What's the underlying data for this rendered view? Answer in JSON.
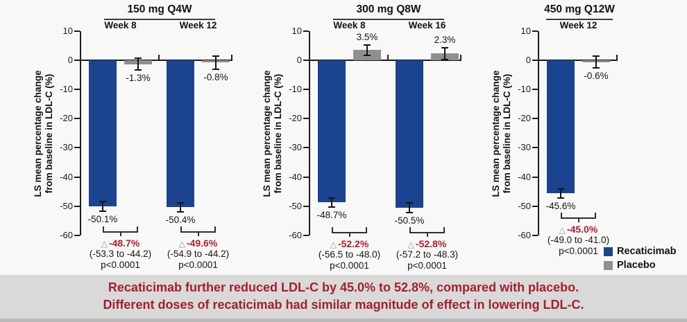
{
  "banner": {
    "line1": "Recaticimab further reduced LDL-C by 45.0% to 52.8%, compared with placebo.",
    "line2": "Different doses of recaticimab had similar magnitude of effect in lowering LDL-C.",
    "text_color": "#a51e2d",
    "bg_color": "#d9d9d9"
  },
  "legend": {
    "position": "bottom-right",
    "items": [
      {
        "label": "Recaticimab",
        "color": "#1a448f"
      },
      {
        "label": "Placebo",
        "color": "#8f8f8f"
      }
    ]
  },
  "chart_data": {
    "type": "bar",
    "ylabel_lines": [
      "LS mean percentage change",
      "from baseline in LDL-C (%)"
    ],
    "unit": "%",
    "ylim": [
      -60,
      10
    ],
    "yticks": [
      10,
      0,
      -10,
      -20,
      -30,
      -40,
      -50,
      -60
    ],
    "grid": false,
    "series_names": [
      "Recaticimab",
      "Placebo"
    ],
    "colors": {
      "recaticimab": "#1a448f",
      "placebo": "#8f8f8f",
      "diff_text": "#b01e2e",
      "triangle": "#969696"
    },
    "panels": [
      {
        "title": "150 mg Q4W",
        "groups": [
          {
            "week": "Week 8",
            "recaticimab": -50.1,
            "recaticimab_err": 1.6,
            "recaticimab_label": "-50.1%",
            "placebo": -1.3,
            "placebo_err": 2.0,
            "placebo_label": "-1.3%",
            "diff_label": "-48.7%",
            "ci": "(-53.3 to -44.2)",
            "p": "p<0.0001"
          },
          {
            "week": "Week 12",
            "recaticimab": -50.4,
            "recaticimab_err": 1.6,
            "recaticimab_label": "-50.4%",
            "placebo": -0.8,
            "placebo_err": 2.2,
            "placebo_label": "-0.8%",
            "diff_label": "-49.6%",
            "ci": "(-54.9 to -44.2)",
            "p": "p<0.0001"
          }
        ]
      },
      {
        "title": "300 mg Q8W",
        "groups": [
          {
            "week": "Week 8",
            "recaticimab": -48.7,
            "recaticimab_err": 1.6,
            "recaticimab_label": "-48.7%",
            "placebo": 3.5,
            "placebo_err": 1.8,
            "placebo_label": "3.5%",
            "diff_label": "-52.2%",
            "ci": "(-56.5 to -48.0)",
            "p": "p<0.0001"
          },
          {
            "week": "Week 16",
            "recaticimab": -50.5,
            "recaticimab_err": 1.6,
            "recaticimab_label": "-50.5%",
            "placebo": 2.3,
            "placebo_err": 2.0,
            "placebo_label": "2.3%",
            "diff_label": "-52.8%",
            "ci": "(-57.2 to -48.3)",
            "p": "p<0.0001"
          }
        ]
      },
      {
        "title": "450 mg Q12W",
        "groups": [
          {
            "week": "Week 12",
            "recaticimab": -45.6,
            "recaticimab_err": 1.5,
            "recaticimab_label": "-45.6%",
            "placebo": -0.6,
            "placebo_err": 2.0,
            "placebo_label": "-0.6%",
            "diff_label": "-45.0%",
            "ci": "(-49.0 to -41.0)",
            "p": "p<0.0001"
          }
        ]
      }
    ]
  }
}
